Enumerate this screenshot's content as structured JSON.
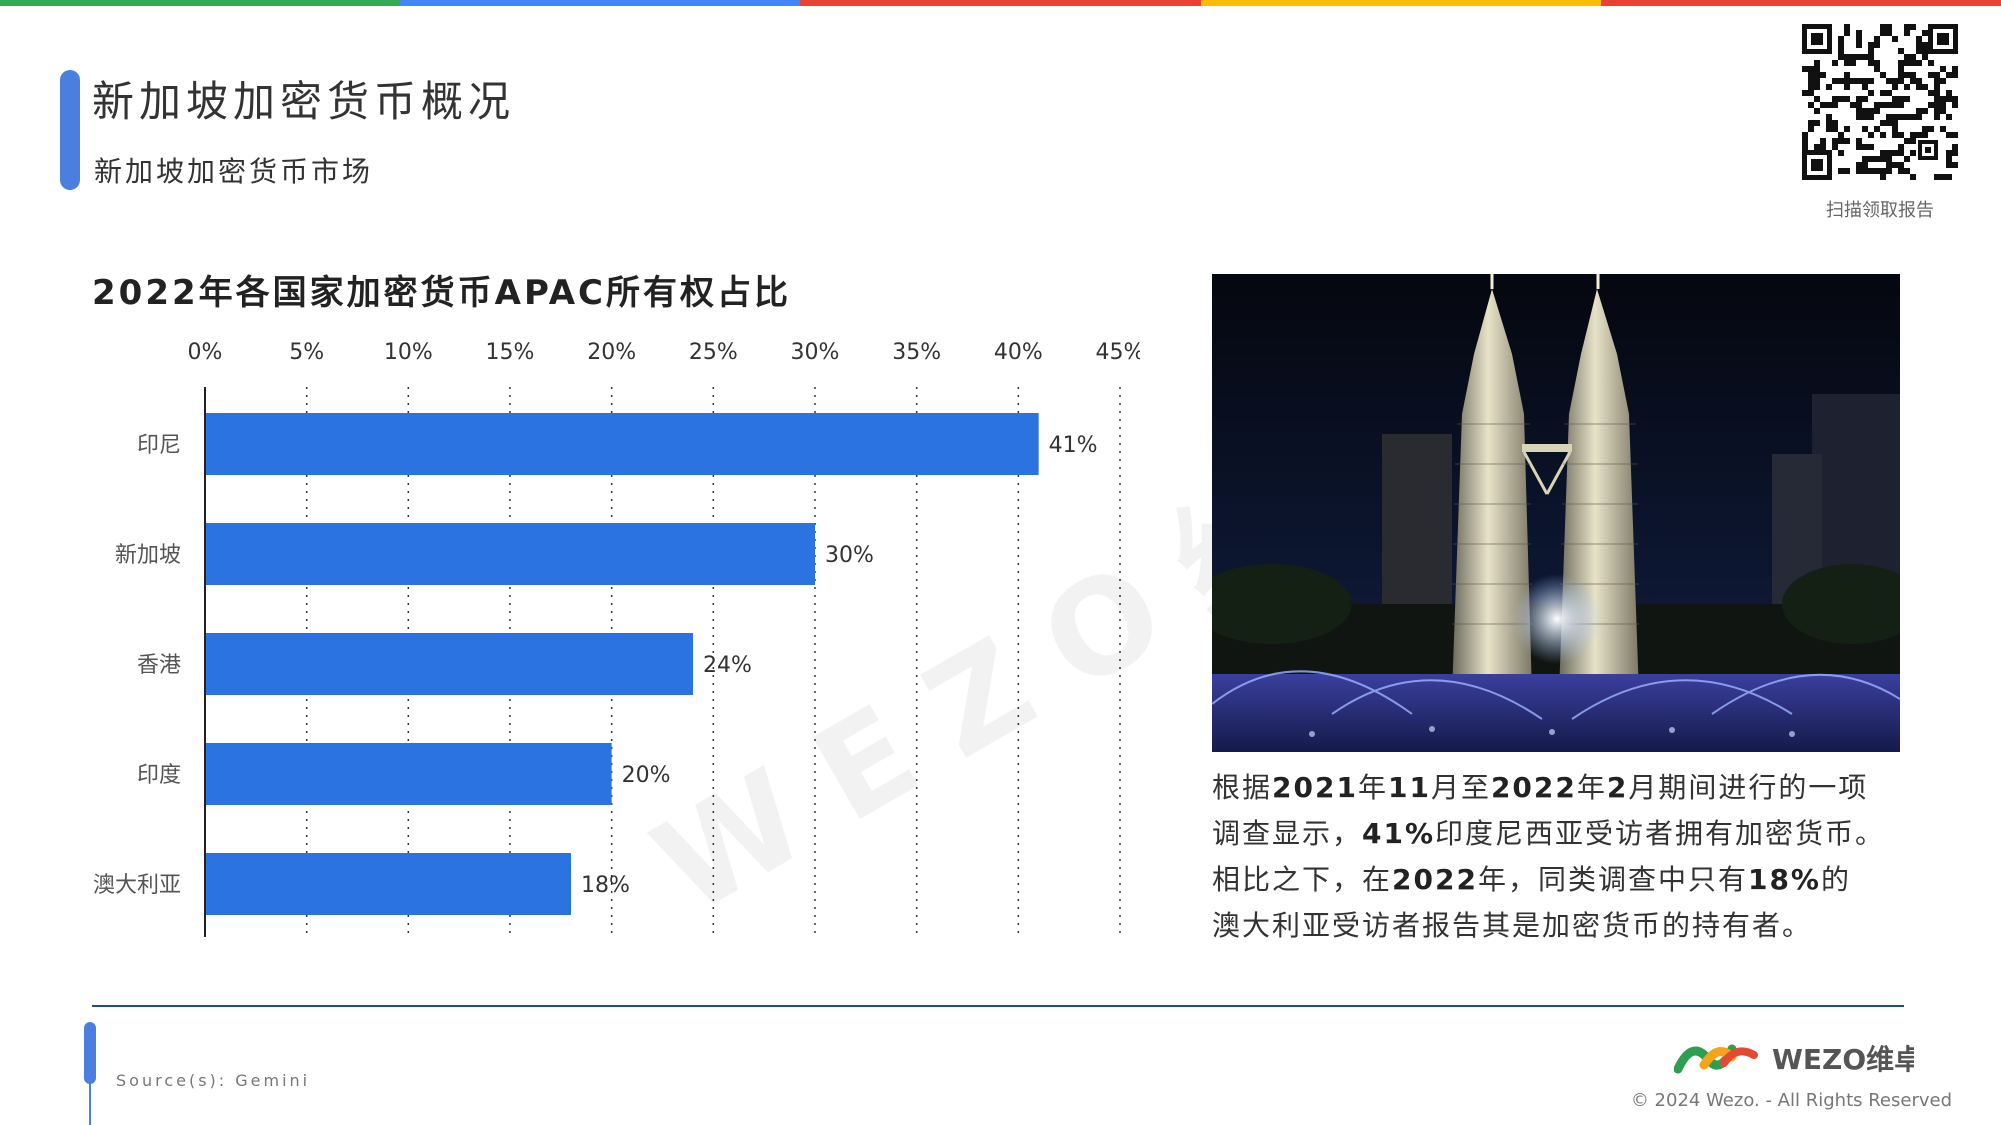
{
  "header": {
    "title": "新加坡加密货币概况",
    "subtitle": "新加坡加密货币市场",
    "top_bar_colors": [
      "#34a853",
      "#4285f4",
      "#ea4335",
      "#fbbc05",
      "#ea4335"
    ]
  },
  "qr": {
    "caption": "扫描领取报告"
  },
  "chart_data": {
    "type": "bar",
    "orientation": "horizontal",
    "title": "2022年各国家加密货币APAC所有权占比",
    "categories": [
      "印尼",
      "新加坡",
      "香港",
      "印度",
      "澳大利亚"
    ],
    "values": [
      41,
      30,
      24,
      20,
      18
    ],
    "value_labels": [
      "41%",
      "30%",
      "24%",
      "20%",
      "18%"
    ],
    "xlim": [
      0,
      45
    ],
    "xticks": [
      0,
      5,
      10,
      15,
      20,
      25,
      30,
      35,
      40,
      45
    ],
    "xtick_labels": [
      "0%",
      "5%",
      "10%",
      "15%",
      "20%",
      "25%",
      "30%",
      "35%",
      "40%",
      "45%"
    ],
    "x_axis_position": "top",
    "grid": "vertical dotted",
    "bar_color": "#2b73e0"
  },
  "watermark": "WEZO维卓",
  "photo": {
    "icon": "petronas-towers-night-photo"
  },
  "description": {
    "lines": [
      [
        {
          "t": "根据",
          "b": false
        },
        {
          "t": "2021",
          "b": true
        },
        {
          "t": "年",
          "b": false
        },
        {
          "t": "11",
          "b": true
        },
        {
          "t": "月至",
          "b": false
        },
        {
          "t": "2022",
          "b": true
        },
        {
          "t": "年",
          "b": false
        },
        {
          "t": "2",
          "b": true
        },
        {
          "t": "月期间进行的一项",
          "b": false
        }
      ],
      [
        {
          "t": "调查显示，",
          "b": false
        },
        {
          "t": "41%",
          "b": true
        },
        {
          "t": "印度尼西亚受访者拥有加密货币。",
          "b": false
        }
      ],
      [
        {
          "t": "相比之下，在",
          "b": false
        },
        {
          "t": "2022",
          "b": true
        },
        {
          "t": "年，同类调查中只有",
          "b": false
        },
        {
          "t": "18%",
          "b": true
        },
        {
          "t": "的",
          "b": false
        }
      ],
      [
        {
          "t": "澳大利亚受访者报告其是加密货币的持有者。",
          "b": false
        }
      ]
    ]
  },
  "footer": {
    "source": "Source(s): Gemini",
    "logo_text": "WEZO维卓",
    "copyright": "© 2024 Wezo. - All Rights Reserved",
    "accent_color": "#4a7fe0",
    "divider_color": "#1a4a9e"
  }
}
